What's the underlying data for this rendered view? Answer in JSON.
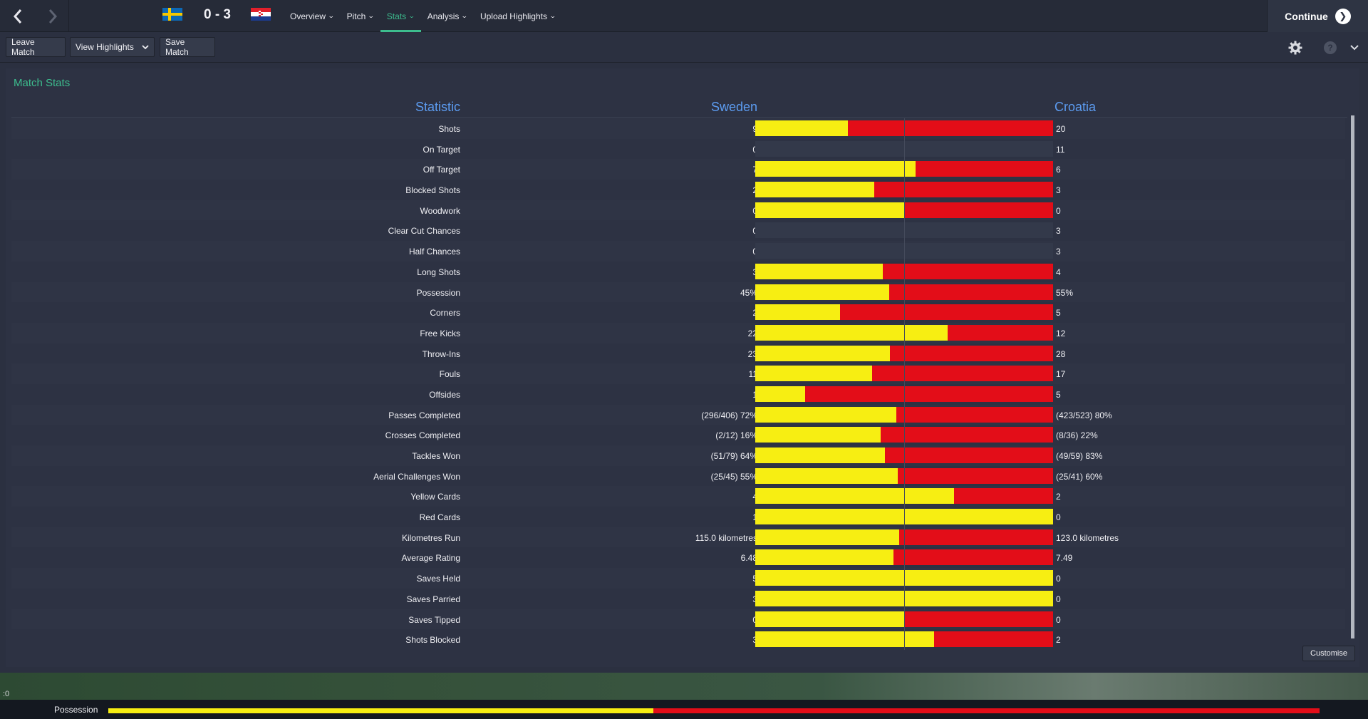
{
  "header": {
    "score": "0 - 3",
    "home_flag": "sweden-flag",
    "away_flag": "croatia-flag",
    "tabs": [
      {
        "label": "Overview",
        "active": false
      },
      {
        "label": "Pitch",
        "active": false
      },
      {
        "label": "Stats",
        "active": true
      },
      {
        "label": "Analysis",
        "active": false
      },
      {
        "label": "Upload Highlights",
        "active": false
      }
    ],
    "continue_label": "Continue"
  },
  "toolbar": {
    "leave_label": "Leave Match",
    "highlights_label": "View Highlights",
    "save_label": "Save Match"
  },
  "panel": {
    "title": "Match Stats",
    "col_statistic": "Statistic",
    "col_home": "Sweden",
    "col_away": "Croatia",
    "customise_label": "Customise"
  },
  "colors": {
    "home": "#f7ee12",
    "away": "#e30d18",
    "accent": "#3dbd8e",
    "heading": "#5c9cf1"
  },
  "stats": [
    {
      "label": "Shots",
      "home": "9",
      "away": "20",
      "h": 9,
      "a": 20
    },
    {
      "label": "On Target",
      "home": "0",
      "away": "11",
      "h": 0,
      "a": 11,
      "empty": true
    },
    {
      "label": "Off Target",
      "home": "7",
      "away": "6",
      "h": 7,
      "a": 6
    },
    {
      "label": "Blocked Shots",
      "home": "2",
      "away": "3",
      "h": 2,
      "a": 3
    },
    {
      "label": "Woodwork",
      "home": "0",
      "away": "0",
      "h": 1,
      "a": 1
    },
    {
      "label": "Clear Cut Chances",
      "home": "0",
      "away": "3",
      "h": 0,
      "a": 3,
      "empty": true
    },
    {
      "label": "Half Chances",
      "home": "0",
      "away": "3",
      "h": 0,
      "a": 3,
      "empty": true
    },
    {
      "label": "Long Shots",
      "home": "3",
      "away": "4",
      "h": 3,
      "a": 4
    },
    {
      "label": "Possession",
      "home": "45%",
      "away": "55%",
      "h": 45,
      "a": 55
    },
    {
      "label": "Corners",
      "home": "2",
      "away": "5",
      "h": 2,
      "a": 5
    },
    {
      "label": "Free Kicks",
      "home": "22",
      "away": "12",
      "h": 22,
      "a": 12
    },
    {
      "label": "Throw-Ins",
      "home": "23",
      "away": "28",
      "h": 23,
      "a": 28
    },
    {
      "label": "Fouls",
      "home": "11",
      "away": "17",
      "h": 11,
      "a": 17
    },
    {
      "label": "Offsides",
      "home": "1",
      "away": "5",
      "h": 1,
      "a": 5
    },
    {
      "label": "Passes Completed",
      "home": "(296/406) 72%",
      "away": "(423/523) 80%",
      "h": 72,
      "a": 80
    },
    {
      "label": "Crosses Completed",
      "home": "(2/12) 16%",
      "away": "(8/36) 22%",
      "h": 16,
      "a": 22
    },
    {
      "label": "Tackles Won",
      "home": "(51/79) 64%",
      "away": "(49/59) 83%",
      "h": 64,
      "a": 83
    },
    {
      "label": "Aerial Challenges Won",
      "home": "(25/45) 55%",
      "away": "(25/41) 60%",
      "h": 55,
      "a": 60
    },
    {
      "label": "Yellow Cards",
      "home": "4",
      "away": "2",
      "h": 4,
      "a": 2
    },
    {
      "label": "Red Cards",
      "home": "1",
      "away": "0",
      "h": 1,
      "a": 0
    },
    {
      "label": "Kilometres Run",
      "home": "115.0 kilometres",
      "away": "123.0 kilometres",
      "h": 115,
      "a": 123
    },
    {
      "label": "Average Rating",
      "home": "6.48",
      "away": "7.49",
      "h": 6.48,
      "a": 7.49
    },
    {
      "label": "Saves Held",
      "home": "5",
      "away": "0",
      "h": 5,
      "a": 0
    },
    {
      "label": "Saves Parried",
      "home": "3",
      "away": "0",
      "h": 3,
      "a": 0
    },
    {
      "label": "Saves Tipped",
      "home": "0",
      "away": "0",
      "h": 1,
      "a": 1
    },
    {
      "label": "Shots Blocked",
      "home": "3",
      "away": "2",
      "h": 3,
      "a": 2
    }
  ],
  "bottom": {
    "score_fragment": ":0",
    "possession_label": "Possession",
    "possession_home_pct": 45
  }
}
